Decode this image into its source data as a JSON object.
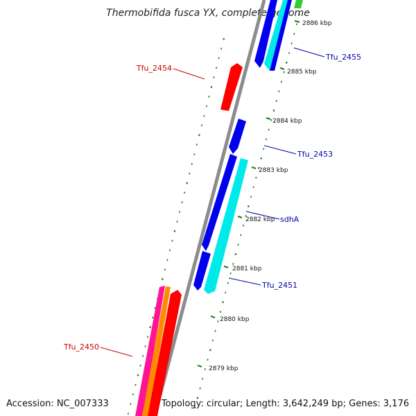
{
  "title": "Thermobifida fusca YX, complete genome",
  "footer": {
    "accession": "Accession: NC_007333",
    "summary": "Topology: circular; Length: 3,642,249 bp; Genes: 3,176"
  },
  "colors": {
    "backbone": "#8c8c8c",
    "tick": "#1e7a1e",
    "forward_label": "#cc0000",
    "reverse_label": "#0000aa",
    "blue": "#0000ee",
    "cyan": "#00eaea",
    "red": "#ff0000",
    "pink": "#ff1493",
    "orange": "#ff8c00",
    "green": "#33cc33"
  },
  "ticks": [
    {
      "label": "2886 kbp"
    },
    {
      "label": "2885 kbp"
    },
    {
      "label": "2884 kbp"
    },
    {
      "label": "2883 kbp"
    },
    {
      "label": "2882 kbp"
    },
    {
      "label": "2881 kbp"
    },
    {
      "label": "2880 kbp"
    },
    {
      "label": "2879 kbp"
    }
  ],
  "genes": [
    {
      "name": "Tfu_2455",
      "strand": "reverse"
    },
    {
      "name": "Tfu_2454",
      "strand": "forward"
    },
    {
      "name": "Tfu_2453",
      "strand": "reverse"
    },
    {
      "name": "sdhA",
      "strand": "reverse"
    },
    {
      "name": "Tfu_2451",
      "strand": "reverse"
    },
    {
      "name": "Tfu_2450",
      "strand": "forward"
    }
  ]
}
